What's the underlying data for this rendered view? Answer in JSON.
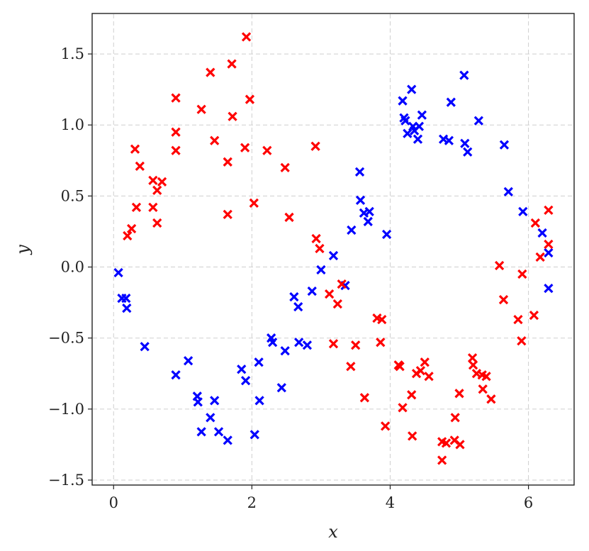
{
  "chart_data": {
    "type": "scatter",
    "xlabel": "x",
    "ylabel": "y",
    "xlim": [
      -0.3,
      6.65
    ],
    "ylim": [
      -1.53,
      1.78
    ],
    "xticks": [
      0,
      2,
      4,
      6
    ],
    "xtick_labels": [
      "0",
      "2",
      "4",
      "6"
    ],
    "yticks": [
      -1.5,
      -1.0,
      -0.5,
      0.0,
      0.5,
      1.0,
      1.5
    ],
    "ytick_labels": [
      "−1.5",
      "−1.0",
      "−0.5",
      "0.0",
      "0.5",
      "1.0",
      "1.5"
    ],
    "grid": true,
    "marker": "x",
    "series": [
      {
        "color": "#0000ff",
        "points": [
          [
            0.07,
            -0.04
          ],
          [
            0.12,
            -0.22
          ],
          [
            0.18,
            -0.22
          ],
          [
            0.19,
            -0.29
          ],
          [
            0.45,
            -0.56
          ],
          [
            0.9,
            -0.76
          ],
          [
            1.08,
            -0.66
          ],
          [
            1.21,
            -0.91
          ],
          [
            1.22,
            -0.95
          ],
          [
            1.27,
            -1.16
          ],
          [
            1.4,
            -1.06
          ],
          [
            1.46,
            -0.94
          ],
          [
            1.52,
            -1.16
          ],
          [
            1.65,
            -1.22
          ],
          [
            1.85,
            -0.72
          ],
          [
            1.91,
            -0.8
          ],
          [
            2.04,
            -1.18
          ],
          [
            2.1,
            -0.67
          ],
          [
            2.11,
            -0.94
          ],
          [
            2.28,
            -0.5
          ],
          [
            2.3,
            -0.53
          ],
          [
            2.43,
            -0.85
          ],
          [
            2.48,
            -0.59
          ],
          [
            2.61,
            -0.21
          ],
          [
            2.67,
            -0.28
          ],
          [
            2.68,
            -0.53
          ],
          [
            2.8,
            -0.55
          ],
          [
            2.87,
            -0.17
          ],
          [
            3.0,
            -0.02
          ],
          [
            3.18,
            0.08
          ],
          [
            3.35,
            -0.13
          ],
          [
            3.44,
            0.26
          ],
          [
            3.56,
            0.67
          ],
          [
            3.57,
            0.47
          ],
          [
            3.62,
            0.38
          ],
          [
            3.68,
            0.32
          ],
          [
            3.7,
            0.39
          ],
          [
            3.95,
            0.23
          ],
          [
            4.18,
            1.17
          ],
          [
            4.2,
            1.05
          ],
          [
            4.22,
            1.03
          ],
          [
            4.25,
            0.94
          ],
          [
            4.31,
            1.25
          ],
          [
            4.33,
            0.99
          ],
          [
            4.35,
            0.96
          ],
          [
            4.4,
            0.9
          ],
          [
            4.42,
            0.99
          ],
          [
            4.46,
            1.07
          ],
          [
            4.77,
            0.9
          ],
          [
            4.85,
            0.89
          ],
          [
            4.88,
            1.16
          ],
          [
            5.07,
            1.35
          ],
          [
            5.08,
            0.87
          ],
          [
            5.12,
            0.81
          ],
          [
            5.28,
            1.03
          ],
          [
            5.65,
            0.86
          ],
          [
            5.71,
            0.53
          ],
          [
            5.92,
            0.39
          ],
          [
            6.2,
            0.24
          ],
          [
            6.29,
            0.1
          ],
          [
            6.29,
            -0.15
          ]
        ]
      },
      {
        "color": "#ff0000",
        "points": [
          [
            0.2,
            0.22
          ],
          [
            0.26,
            0.27
          ],
          [
            0.31,
            0.83
          ],
          [
            0.33,
            0.42
          ],
          [
            0.38,
            0.71
          ],
          [
            0.57,
            0.61
          ],
          [
            0.57,
            0.42
          ],
          [
            0.63,
            0.31
          ],
          [
            0.63,
            0.54
          ],
          [
            0.7,
            0.6
          ],
          [
            0.9,
            1.19
          ],
          [
            0.9,
            0.95
          ],
          [
            0.9,
            0.82
          ],
          [
            1.27,
            1.11
          ],
          [
            1.4,
            1.37
          ],
          [
            1.46,
            0.89
          ],
          [
            1.65,
            0.37
          ],
          [
            1.65,
            0.74
          ],
          [
            1.71,
            1.43
          ],
          [
            1.72,
            1.06
          ],
          [
            1.9,
            0.84
          ],
          [
            1.92,
            1.62
          ],
          [
            1.97,
            1.18
          ],
          [
            2.03,
            0.45
          ],
          [
            2.22,
            0.82
          ],
          [
            2.48,
            0.7
          ],
          [
            2.54,
            0.35
          ],
          [
            2.92,
            0.85
          ],
          [
            2.93,
            0.2
          ],
          [
            2.98,
            0.13
          ],
          [
            3.12,
            -0.19
          ],
          [
            3.18,
            -0.54
          ],
          [
            3.24,
            -0.26
          ],
          [
            3.3,
            -0.12
          ],
          [
            3.43,
            -0.7
          ],
          [
            3.5,
            -0.55
          ],
          [
            3.63,
            -0.92
          ],
          [
            3.81,
            -0.36
          ],
          [
            3.86,
            -0.53
          ],
          [
            3.88,
            -0.37
          ],
          [
            3.93,
            -1.12
          ],
          [
            4.12,
            -0.69
          ],
          [
            4.14,
            -0.7
          ],
          [
            4.18,
            -0.99
          ],
          [
            4.31,
            -0.9
          ],
          [
            4.32,
            -1.19
          ],
          [
            4.38,
            -0.75
          ],
          [
            4.44,
            -0.73
          ],
          [
            4.5,
            -0.67
          ],
          [
            4.56,
            -0.77
          ],
          [
            4.75,
            -1.23
          ],
          [
            4.75,
            -1.36
          ],
          [
            4.81,
            -1.24
          ],
          [
            4.93,
            -1.22
          ],
          [
            4.94,
            -1.06
          ],
          [
            5.0,
            -0.89
          ],
          [
            5.01,
            -1.25
          ],
          [
            5.19,
            -0.64
          ],
          [
            5.2,
            -0.69
          ],
          [
            5.25,
            -0.75
          ],
          [
            5.33,
            -0.76
          ],
          [
            5.34,
            -0.86
          ],
          [
            5.39,
            -0.77
          ],
          [
            5.46,
            -0.93
          ],
          [
            5.58,
            0.01
          ],
          [
            5.64,
            -0.23
          ],
          [
            5.85,
            -0.37
          ],
          [
            5.9,
            -0.52
          ],
          [
            5.91,
            -0.05
          ],
          [
            6.08,
            -0.34
          ],
          [
            6.1,
            0.31
          ],
          [
            6.17,
            0.07
          ],
          [
            6.29,
            0.4
          ],
          [
            6.29,
            0.16
          ]
        ]
      }
    ]
  }
}
